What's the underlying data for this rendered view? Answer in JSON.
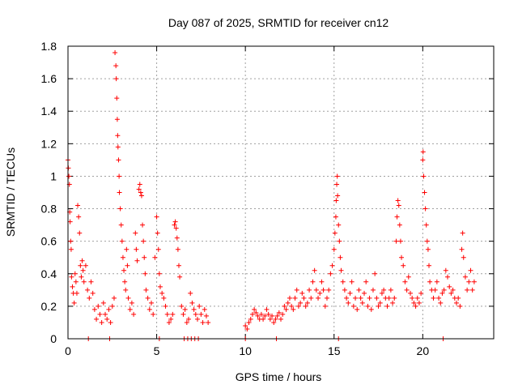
{
  "chart_data": {
    "type": "scatter",
    "title": "Day 087 of 2025, SRMTID for receiver cn12",
    "xlabel": "GPS time / hours",
    "ylabel": "SRMTID / TECUs",
    "xlim": [
      0,
      24
    ],
    "ylim": [
      0,
      1.8
    ],
    "x_ticks": [
      0,
      5,
      10,
      15,
      20
    ],
    "x_tick_labels": [
      "0",
      "5",
      "10",
      "15",
      "20"
    ],
    "y_ticks": [
      0,
      0.2,
      0.4,
      0.6,
      0.8,
      1.0,
      1.2,
      1.4,
      1.6,
      1.8
    ],
    "y_tick_labels": [
      "0",
      "0.2",
      "0.4",
      "0.6",
      "0.8",
      "1",
      "1.2",
      "1.4",
      "1.6",
      "1.8"
    ],
    "grid": true,
    "marker": "+",
    "series": [
      {
        "name": "SRMTID",
        "color": "#ff0000",
        "points": [
          [
            0.0,
            1.1
          ],
          [
            0.02,
            1.05
          ],
          [
            0.05,
            1.0
          ],
          [
            0.08,
            0.95
          ],
          [
            0.1,
            0.78
          ],
          [
            0.12,
            0.72
          ],
          [
            0.15,
            0.6
          ],
          [
            0.18,
            0.55
          ],
          [
            0.2,
            0.38
          ],
          [
            0.25,
            0.32
          ],
          [
            0.3,
            0.28
          ],
          [
            0.35,
            0.22
          ],
          [
            0.4,
            0.4
          ],
          [
            0.45,
            0.35
          ],
          [
            0.5,
            0.28
          ],
          [
            0.55,
            0.82
          ],
          [
            0.6,
            0.75
          ],
          [
            0.65,
            0.65
          ],
          [
            0.7,
            0.45
          ],
          [
            0.75,
            0.38
          ],
          [
            0.8,
            0.48
          ],
          [
            0.85,
            0.42
          ],
          [
            0.9,
            0.35
          ],
          [
            1.0,
            0.45
          ],
          [
            1.1,
            0.3
          ],
          [
            1.2,
            0.25
          ],
          [
            1.3,
            0.35
          ],
          [
            1.4,
            0.28
          ],
          [
            1.5,
            0.18
          ],
          [
            1.6,
            0.12
          ],
          [
            1.7,
            0.2
          ],
          [
            1.8,
            0.15
          ],
          [
            1.9,
            0.1
          ],
          [
            2.0,
            0.22
          ],
          [
            2.1,
            0.15
          ],
          [
            2.2,
            0.12
          ],
          [
            2.3,
            0.18
          ],
          [
            2.4,
            0.1
          ],
          [
            2.5,
            0.2
          ],
          [
            2.6,
            0.25
          ],
          [
            2.65,
            1.76
          ],
          [
            2.7,
            1.68
          ],
          [
            2.72,
            1.6
          ],
          [
            2.75,
            1.48
          ],
          [
            2.78,
            1.35
          ],
          [
            2.8,
            1.25
          ],
          [
            2.82,
            1.18
          ],
          [
            2.85,
            1.1
          ],
          [
            2.88,
            1.0
          ],
          [
            2.9,
            0.9
          ],
          [
            2.95,
            0.8
          ],
          [
            3.0,
            0.7
          ],
          [
            3.05,
            0.6
          ],
          [
            3.1,
            0.5
          ],
          [
            3.15,
            0.42
          ],
          [
            3.2,
            0.35
          ],
          [
            3.25,
            0.3
          ],
          [
            3.3,
            0.55
          ],
          [
            3.35,
            0.45
          ],
          [
            3.4,
            0.25
          ],
          [
            3.5,
            0.18
          ],
          [
            3.6,
            0.22
          ],
          [
            3.7,
            0.15
          ],
          [
            3.8,
            0.65
          ],
          [
            3.85,
            0.55
          ],
          [
            3.9,
            0.48
          ],
          [
            4.0,
            0.92
          ],
          [
            4.05,
            0.95
          ],
          [
            4.1,
            0.9
          ],
          [
            4.15,
            0.88
          ],
          [
            4.2,
            0.7
          ],
          [
            4.25,
            0.6
          ],
          [
            4.3,
            0.5
          ],
          [
            4.35,
            0.4
          ],
          [
            4.4,
            0.3
          ],
          [
            4.5,
            0.25
          ],
          [
            4.6,
            0.18
          ],
          [
            4.7,
            0.22
          ],
          [
            4.8,
            0.15
          ],
          [
            4.9,
            0.5
          ],
          [
            5.0,
            0.75
          ],
          [
            5.05,
            0.65
          ],
          [
            5.1,
            0.55
          ],
          [
            5.15,
            0.4
          ],
          [
            5.2,
            0.32
          ],
          [
            5.3,
            0.28
          ],
          [
            5.4,
            0.25
          ],
          [
            5.5,
            0.2
          ],
          [
            5.6,
            0.15
          ],
          [
            5.7,
            0.1
          ],
          [
            5.8,
            0.12
          ],
          [
            5.9,
            0.15
          ],
          [
            6.0,
            0.7
          ],
          [
            6.05,
            0.72
          ],
          [
            6.1,
            0.68
          ],
          [
            6.15,
            0.62
          ],
          [
            6.2,
            0.55
          ],
          [
            6.25,
            0.45
          ],
          [
            6.3,
            0.38
          ],
          [
            6.4,
            0.2
          ],
          [
            6.5,
            0.15
          ],
          [
            6.6,
            0.18
          ],
          [
            6.7,
            0.1
          ],
          [
            6.8,
            0.12
          ],
          [
            6.9,
            0.28
          ],
          [
            7.0,
            0.22
          ],
          [
            7.1,
            0.18
          ],
          [
            7.2,
            0.15
          ],
          [
            7.3,
            0.12
          ],
          [
            7.4,
            0.2
          ],
          [
            7.5,
            0.15
          ],
          [
            7.6,
            0.1
          ],
          [
            7.7,
            0.18
          ],
          [
            7.8,
            0.14
          ],
          [
            7.9,
            0.1
          ],
          [
            10.0,
            0.08
          ],
          [
            10.1,
            0.06
          ],
          [
            10.2,
            0.1
          ],
          [
            10.3,
            0.12
          ],
          [
            10.4,
            0.15
          ],
          [
            10.5,
            0.18
          ],
          [
            10.6,
            0.16
          ],
          [
            10.7,
            0.14
          ],
          [
            10.8,
            0.12
          ],
          [
            10.9,
            0.15
          ],
          [
            11.0,
            0.12
          ],
          [
            11.1,
            0.14
          ],
          [
            11.2,
            0.18
          ],
          [
            11.3,
            0.15
          ],
          [
            11.4,
            0.12
          ],
          [
            11.5,
            0.14
          ],
          [
            11.6,
            0.1
          ],
          [
            11.7,
            0.12
          ],
          [
            11.8,
            0.14
          ],
          [
            11.9,
            0.16
          ],
          [
            12.0,
            0.12
          ],
          [
            12.1,
            0.15
          ],
          [
            12.2,
            0.2
          ],
          [
            12.3,
            0.18
          ],
          [
            12.4,
            0.22
          ],
          [
            12.5,
            0.25
          ],
          [
            12.6,
            0.2
          ],
          [
            12.7,
            0.18
          ],
          [
            12.8,
            0.25
          ],
          [
            12.9,
            0.3
          ],
          [
            13.0,
            0.2
          ],
          [
            13.1,
            0.22
          ],
          [
            13.2,
            0.28
          ],
          [
            13.3,
            0.25
          ],
          [
            13.4,
            0.2
          ],
          [
            13.5,
            0.22
          ],
          [
            13.6,
            0.3
          ],
          [
            13.7,
            0.25
          ],
          [
            13.8,
            0.35
          ],
          [
            13.9,
            0.42
          ],
          [
            14.0,
            0.3
          ],
          [
            14.1,
            0.25
          ],
          [
            14.2,
            0.28
          ],
          [
            14.3,
            0.35
          ],
          [
            14.4,
            0.3
          ],
          [
            14.5,
            0.2
          ],
          [
            14.6,
            0.25
          ],
          [
            14.7,
            0.3
          ],
          [
            14.8,
            0.4
          ],
          [
            14.9,
            0.45
          ],
          [
            15.0,
            0.55
          ],
          [
            15.05,
            0.65
          ],
          [
            15.1,
            0.75
          ],
          [
            15.12,
            0.85
          ],
          [
            15.15,
            0.95
          ],
          [
            15.18,
            1.0
          ],
          [
            15.2,
            0.88
          ],
          [
            15.25,
            0.7
          ],
          [
            15.3,
            0.6
          ],
          [
            15.35,
            0.5
          ],
          [
            15.4,
            0.42
          ],
          [
            15.5,
            0.35
          ],
          [
            15.6,
            0.3
          ],
          [
            15.7,
            0.25
          ],
          [
            15.8,
            0.22
          ],
          [
            15.9,
            0.28
          ],
          [
            16.0,
            0.35
          ],
          [
            16.1,
            0.2
          ],
          [
            16.2,
            0.25
          ],
          [
            16.3,
            0.18
          ],
          [
            16.4,
            0.3
          ],
          [
            16.5,
            0.25
          ],
          [
            16.6,
            0.22
          ],
          [
            16.7,
            0.28
          ],
          [
            16.8,
            0.35
          ],
          [
            16.9,
            0.2
          ],
          [
            17.0,
            0.25
          ],
          [
            17.1,
            0.18
          ],
          [
            17.2,
            0.3
          ],
          [
            17.3,
            0.4
          ],
          [
            17.4,
            0.25
          ],
          [
            17.5,
            0.2
          ],
          [
            17.6,
            0.22
          ],
          [
            17.7,
            0.28
          ],
          [
            17.8,
            0.3
          ],
          [
            17.9,
            0.25
          ],
          [
            18.0,
            0.2
          ],
          [
            18.1,
            0.25
          ],
          [
            18.2,
            0.3
          ],
          [
            18.3,
            0.22
          ],
          [
            18.4,
            0.25
          ],
          [
            18.5,
            0.6
          ],
          [
            18.55,
            0.75
          ],
          [
            18.6,
            0.85
          ],
          [
            18.65,
            0.82
          ],
          [
            18.7,
            0.7
          ],
          [
            18.75,
            0.6
          ],
          [
            18.8,
            0.5
          ],
          [
            18.9,
            0.45
          ],
          [
            19.0,
            0.35
          ],
          [
            19.1,
            0.3
          ],
          [
            19.2,
            0.38
          ],
          [
            19.3,
            0.28
          ],
          [
            19.4,
            0.25
          ],
          [
            19.5,
            0.22
          ],
          [
            19.6,
            0.2
          ],
          [
            19.7,
            0.25
          ],
          [
            19.8,
            0.22
          ],
          [
            19.9,
            0.28
          ],
          [
            20.0,
            1.1
          ],
          [
            20.02,
            1.15
          ],
          [
            20.05,
            1.0
          ],
          [
            20.1,
            0.9
          ],
          [
            20.15,
            0.8
          ],
          [
            20.2,
            0.7
          ],
          [
            20.25,
            0.6
          ],
          [
            20.3,
            0.55
          ],
          [
            20.35,
            0.45
          ],
          [
            20.4,
            0.35
          ],
          [
            20.5,
            0.3
          ],
          [
            20.6,
            0.25
          ],
          [
            20.7,
            0.3
          ],
          [
            20.8,
            0.35
          ],
          [
            20.9,
            0.25
          ],
          [
            21.0,
            0.22
          ],
          [
            21.1,
            0.28
          ],
          [
            21.2,
            0.3
          ],
          [
            21.3,
            0.42
          ],
          [
            21.4,
            0.38
          ],
          [
            21.5,
            0.32
          ],
          [
            21.6,
            0.28
          ],
          [
            21.7,
            0.3
          ],
          [
            21.8,
            0.25
          ],
          [
            21.9,
            0.22
          ],
          [
            22.0,
            0.25
          ],
          [
            22.1,
            0.2
          ],
          [
            22.2,
            0.55
          ],
          [
            22.25,
            0.65
          ],
          [
            22.3,
            0.5
          ],
          [
            22.4,
            0.38
          ],
          [
            22.5,
            0.3
          ],
          [
            22.6,
            0.35
          ],
          [
            22.7,
            0.42
          ],
          [
            22.8,
            0.3
          ],
          [
            22.9,
            0.35
          ],
          [
            1.15,
            0.0
          ],
          [
            2.35,
            0.0
          ],
          [
            5.15,
            0.0
          ],
          [
            6.55,
            0.0
          ],
          [
            6.75,
            0.0
          ],
          [
            6.95,
            0.0
          ],
          [
            7.15,
            0.0
          ],
          [
            7.35,
            0.0
          ],
          [
            10.0,
            0.0
          ],
          [
            11.75,
            0.0
          ],
          [
            15.25,
            0.0
          ],
          [
            21.15,
            0.0
          ]
        ]
      }
    ]
  }
}
